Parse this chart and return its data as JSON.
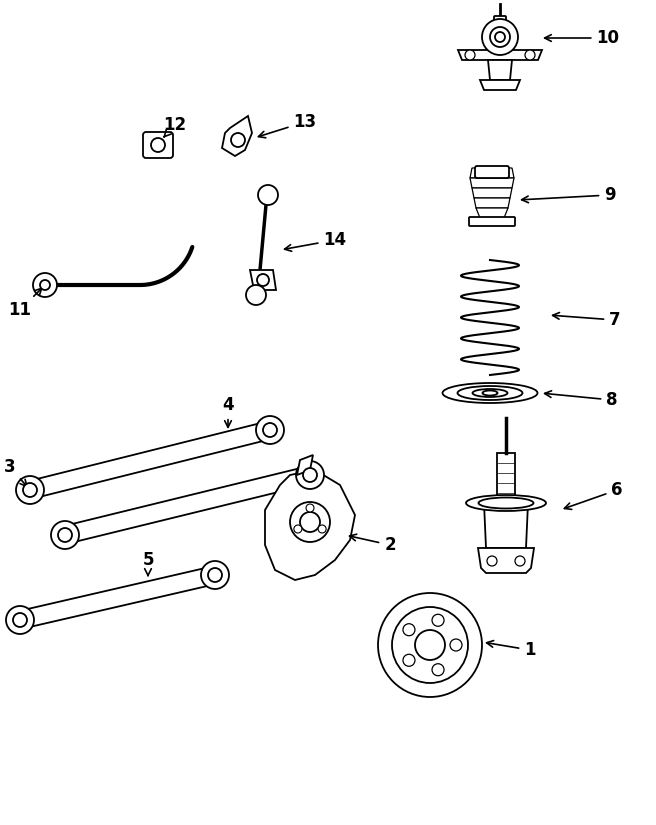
{
  "bg_color": "#ffffff",
  "line_color": "#000000",
  "fig_width": 6.56,
  "fig_height": 8.25,
  "dpi": 100
}
